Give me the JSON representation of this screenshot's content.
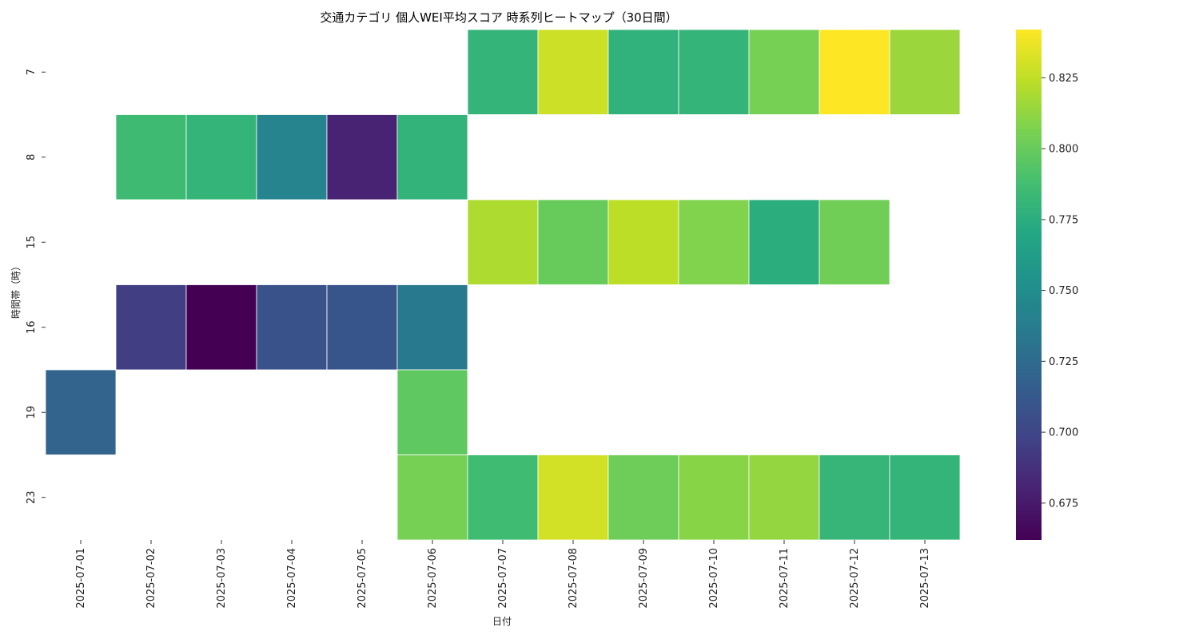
{
  "chart_data": {
    "type": "heatmap",
    "title": "交通カテゴリ 個人WEI平均スコア 時系列ヒートマップ（30日間）",
    "xlabel": "日付",
    "ylabel": "時間帯（時）",
    "x_categories": [
      "2025-07-01",
      "2025-07-02",
      "2025-07-03",
      "2025-07-04",
      "2025-07-05",
      "2025-07-06",
      "2025-07-07",
      "2025-07-08",
      "2025-07-09",
      "2025-07-10",
      "2025-07-11",
      "2025-07-12",
      "2025-07-13"
    ],
    "y_categories": [
      "7",
      "8",
      "15",
      "16",
      "19",
      "23"
    ],
    "values": [
      [
        null,
        null,
        null,
        null,
        null,
        null,
        0.78,
        0.828,
        0.778,
        0.78,
        0.805,
        0.842,
        0.815
      ],
      [
        null,
        0.785,
        0.78,
        0.743,
        0.68,
        0.779,
        null,
        null,
        null,
        null,
        null,
        null,
        null
      ],
      [
        null,
        null,
        null,
        null,
        null,
        null,
        0.82,
        0.8,
        0.824,
        0.808,
        0.775,
        0.803,
        null
      ],
      [
        null,
        0.695,
        0.662,
        0.708,
        0.71,
        0.735,
        null,
        null,
        null,
        null,
        null,
        null,
        null
      ],
      [
        0.72,
        null,
        null,
        null,
        null,
        0.797,
        null,
        null,
        null,
        null,
        null,
        null,
        null
      ],
      [
        null,
        null,
        null,
        null,
        null,
        0.805,
        0.786,
        0.83,
        0.802,
        0.81,
        0.813,
        0.781,
        0.78
      ]
    ],
    "colorbar": {
      "min": 0.662,
      "max": 0.842,
      "ticks": [
        "0.675",
        "0.700",
        "0.725",
        "0.750",
        "0.775",
        "0.800",
        "0.825"
      ],
      "colormap": "viridis"
    },
    "grid": false
  }
}
